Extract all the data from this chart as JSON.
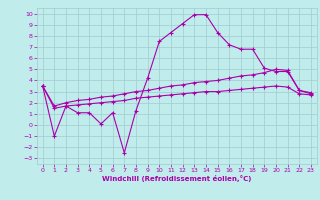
{
  "xlabel": "Windchill (Refroidissement éolien,°C)",
  "bg_color": "#c0ecec",
  "grid_color": "#a0ccd0",
  "line_color": "#aa00aa",
  "xlim": [
    -0.5,
    23.5
  ],
  "ylim": [
    -3.5,
    10.5
  ],
  "xticks": [
    0,
    1,
    2,
    3,
    4,
    5,
    6,
    7,
    8,
    9,
    10,
    11,
    12,
    13,
    14,
    15,
    16,
    17,
    18,
    19,
    20,
    21,
    22,
    23
  ],
  "yticks": [
    -3,
    -2,
    -1,
    0,
    1,
    2,
    3,
    4,
    5,
    6,
    7,
    8,
    9,
    10
  ],
  "line1_x": [
    0,
    1,
    2,
    3,
    4,
    5,
    6,
    7,
    8,
    9,
    10,
    11,
    12,
    13,
    14,
    15,
    16,
    17,
    18,
    19,
    20,
    21,
    22,
    23
  ],
  "line1_y": [
    3.5,
    -1.0,
    1.7,
    1.1,
    1.1,
    0.1,
    1.1,
    -2.5,
    1.3,
    4.2,
    7.5,
    8.3,
    9.1,
    9.9,
    9.9,
    8.3,
    7.2,
    6.8,
    6.8,
    5.1,
    4.8,
    4.8,
    3.1,
    2.8
  ],
  "line2_x": [
    0,
    1,
    2,
    3,
    4,
    5,
    6,
    7,
    8,
    9,
    10,
    11,
    12,
    13,
    14,
    15,
    16,
    17,
    18,
    19,
    20,
    21,
    22,
    23
  ],
  "line2_y": [
    3.5,
    1.7,
    2.0,
    2.2,
    2.3,
    2.5,
    2.6,
    2.8,
    3.0,
    3.1,
    3.3,
    3.5,
    3.6,
    3.8,
    3.9,
    4.0,
    4.2,
    4.4,
    4.5,
    4.7,
    5.0,
    4.9,
    3.1,
    2.9
  ],
  "line3_x": [
    0,
    1,
    2,
    3,
    4,
    5,
    6,
    7,
    8,
    9,
    10,
    11,
    12,
    13,
    14,
    15,
    16,
    17,
    18,
    19,
    20,
    21,
    22,
    23
  ],
  "line3_y": [
    3.5,
    1.5,
    1.7,
    1.8,
    1.9,
    2.0,
    2.1,
    2.2,
    2.4,
    2.5,
    2.6,
    2.7,
    2.8,
    2.9,
    3.0,
    3.0,
    3.1,
    3.2,
    3.3,
    3.4,
    3.5,
    3.4,
    2.8,
    2.7
  ]
}
